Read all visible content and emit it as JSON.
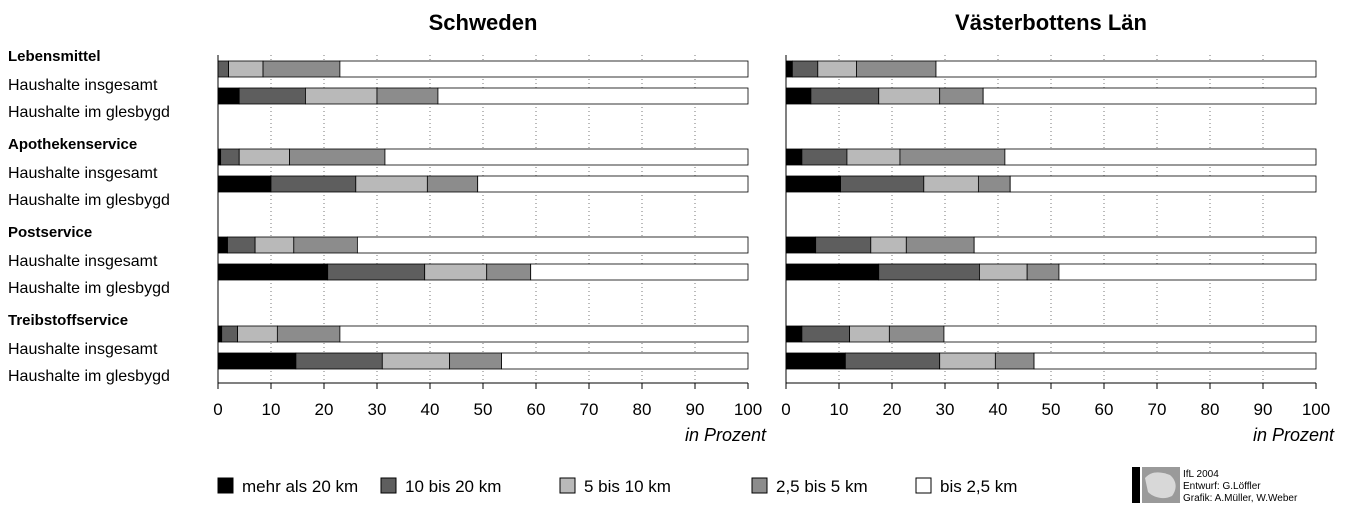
{
  "colors": {
    "mehr_als_20_km": "#000000",
    "10_bis_20_km": "#5e5e5e",
    "5_bis_10_km": "#b9b9b9",
    "2_5_bis_5_km": "#8c8c8c",
    "bis_2_5_km": "#ffffff"
  },
  "credits": {
    "line1": "IfL 2004",
    "line2": "Entwurf: G.Löffler",
    "line3": "Grafik: A.Müller, W.Weber",
    "logo_icon": "ifl-logo-icon"
  },
  "chart_data": {
    "type": "bar",
    "orientation": "horizontal",
    "stacked": true,
    "xlim": [
      0,
      100
    ],
    "xticks": [
      "0",
      "10",
      "20",
      "30",
      "40",
      "50",
      "60",
      "70",
      "80",
      "90",
      "100"
    ],
    "xlabel": "in Prozent",
    "grid": "vertical-dotted",
    "legend_position": "bottom",
    "legend": [
      {
        "name": "mehr als 20 km",
        "color_key": "mehr_als_20_km"
      },
      {
        "name": "10 bis 20 km",
        "color_key": "10_bis_20_km"
      },
      {
        "name": "5 bis 10 km",
        "color_key": "5_bis_10_km"
      },
      {
        "name": "2,5 bis 5 km",
        "color_key": "2_5_bis_5_km"
      },
      {
        "name": "bis 2,5 km",
        "color_key": "bis_2_5_km"
      }
    ],
    "segment_order": [
      "mehr_als_20_km",
      "10_bis_20_km",
      "5_bis_10_km",
      "2_5_bis_5_km",
      "bis_2_5_km"
    ],
    "groups": [
      {
        "label": "Lebensmittel",
        "rows": [
          "Haushalte insgesamt",
          "Haushalte im glesbygd"
        ]
      },
      {
        "label": "Apothekenservice",
        "rows": [
          "Haushalte insgesamt",
          "Haushalte im glesbygd"
        ]
      },
      {
        "label": "Postservice",
        "rows": [
          "Haushalte insgesamt",
          "Haushalte im glesbygd"
        ]
      },
      {
        "label": "Treibstoffservice",
        "rows": [
          "Haushalte insgesamt",
          "Haushalte im glesbygd"
        ]
      }
    ],
    "panels": [
      {
        "title": "Schweden",
        "bars": [
          [
            [
              0,
              2,
              6.5,
              14.5,
              77
            ]
          ],
          [
            [
              4,
              12.5,
              13.5,
              11.5,
              58.5
            ]
          ],
          [
            [
              0.5,
              3.5,
              9.5,
              18,
              68.5
            ]
          ],
          [
            [
              10,
              16,
              13.5,
              9.5,
              51
            ]
          ],
          [
            [
              1.8,
              5.2,
              7.3,
              12,
              73.7
            ]
          ],
          [
            [
              20.7,
              18.3,
              11.7,
              8.3,
              41
            ]
          ],
          [
            [
              0.7,
              3,
              7.5,
              11.8,
              77
            ]
          ],
          [
            [
              14.7,
              16.3,
              12.7,
              9.8,
              46.5
            ]
          ]
        ]
      },
      {
        "title": "Västerbottens Län",
        "bars": [
          [
            [
              1.2,
              4.8,
              7.3,
              15,
              71.7
            ]
          ],
          [
            [
              4.7,
              12.8,
              11.5,
              8.2,
              62.8
            ]
          ],
          [
            [
              3,
              8.5,
              10,
              19.8,
              58.7
            ]
          ],
          [
            [
              10.3,
              15.7,
              10.3,
              6,
              57.7
            ]
          ],
          [
            [
              5.6,
              10.4,
              6.7,
              12.8,
              64.5
            ]
          ],
          [
            [
              17.5,
              19,
              9,
              6,
              48.5
            ]
          ],
          [
            [
              3,
              9,
              7.5,
              10.3,
              70.2
            ]
          ],
          [
            [
              11.2,
              17.8,
              10.5,
              7.3,
              53.2
            ]
          ]
        ]
      }
    ]
  }
}
